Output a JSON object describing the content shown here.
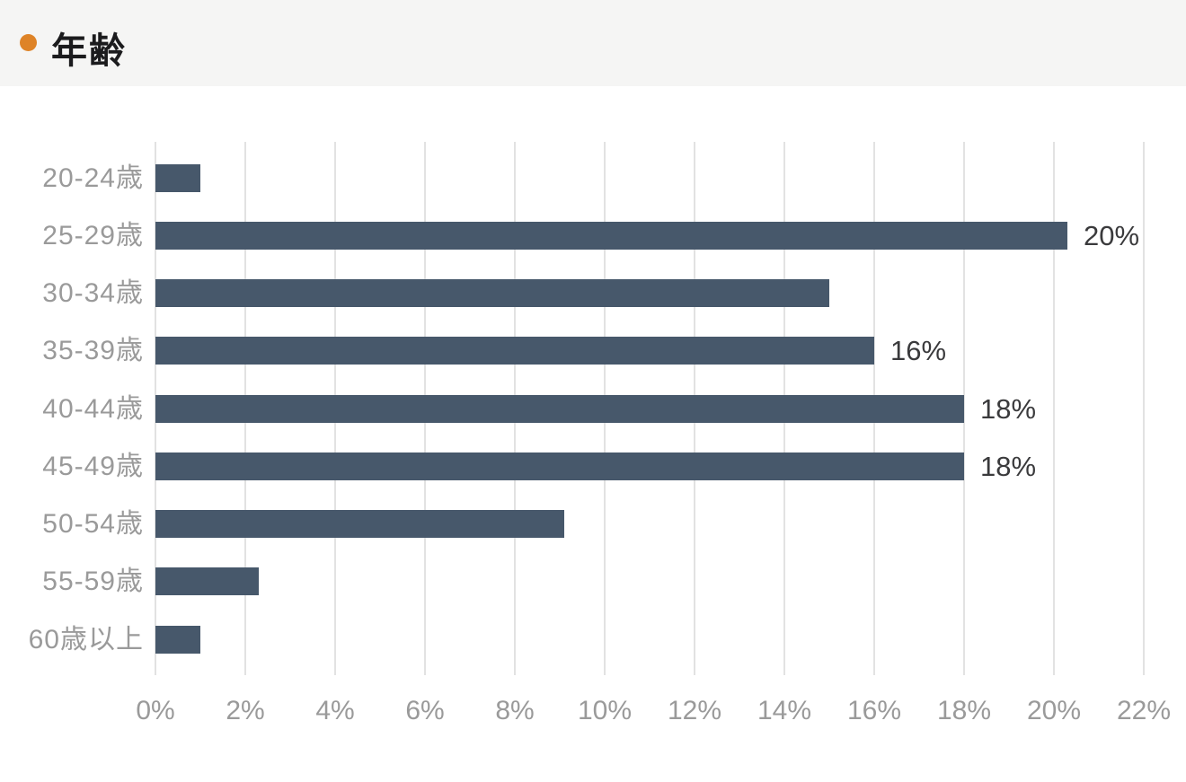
{
  "header": {
    "title": "年齢",
    "bullet_color": "#de8327",
    "background_color": "#f5f5f4",
    "title_color": "#1b1b1d"
  },
  "chart_data": {
    "type": "bar",
    "orientation": "horizontal",
    "title": "年齢",
    "categories": [
      "20-24歳",
      "25-29歳",
      "30-34歳",
      "35-39歳",
      "40-44歳",
      "45-49歳",
      "50-54歳",
      "55-59歳",
      "60歳以上"
    ],
    "values": [
      1,
      20.3,
      15,
      16,
      18,
      18,
      9.1,
      2.3,
      1
    ],
    "bar_labels": [
      "",
      "20%",
      "",
      "16%",
      "18%",
      "18%",
      "",
      "",
      ""
    ],
    "x_ticks": [
      "0%",
      "2%",
      "4%",
      "6%",
      "8%",
      "10%",
      "12%",
      "14%",
      "16%",
      "18%",
      "20%",
      "22%"
    ],
    "xlim": [
      0,
      22
    ],
    "xlabel": "",
    "ylabel": "",
    "grid": true,
    "legend": false,
    "bar_color": "#47586b",
    "gridline_color": "#e2e2e2",
    "axis_label_color": "#9a9a9a",
    "value_label_color": "#3a3a3c"
  }
}
